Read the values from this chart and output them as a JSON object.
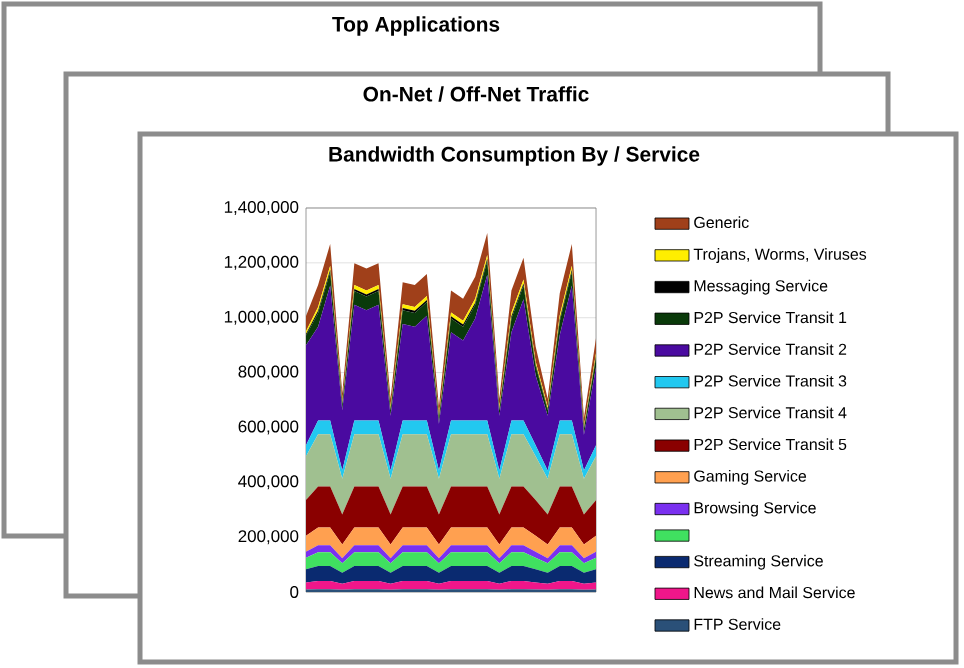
{
  "chart_data": {
    "type": "area",
    "stacked": true,
    "title": "Bandwidth Consumption By / Service",
    "annotations": [
      "Top Applications",
      "On-Net / Off-Net Traffic"
    ],
    "categories": [
      null,
      null,
      null,
      null,
      null,
      null,
      null,
      null,
      null,
      null,
      null,
      null,
      null,
      null,
      null,
      null,
      null,
      null,
      null,
      null,
      null,
      null,
      null,
      null,
      null
    ],
    "ylim": [
      0,
      1400000
    ],
    "yticks": [
      0,
      {
        "value": 200000,
        "label": "200,000"
      },
      {
        "value": 400000,
        "label": "400,000"
      },
      {
        "value": 600000,
        "label": "600,000"
      },
      {
        "value": 800000,
        "label": "800,000"
      },
      {
        "value": 1000000,
        "label": "1,000,000"
      },
      {
        "value": 1200000,
        "label": "1,200,000"
      },
      {
        "value": 1400000,
        "label": "1,400,000"
      }
    ],
    "grid": "y",
    "legend": "right",
    "series": [
      {
        "name": "FTP Service",
        "color": "#2a5078",
        "values": [
          9000,
          10000,
          10000,
          8000,
          10000,
          10000,
          10000,
          8000,
          10000,
          10000,
          10000,
          8000,
          10000,
          10000,
          10000,
          10000,
          8000,
          10000,
          10000,
          9000,
          8000,
          10000,
          10000,
          8000,
          9000
        ]
      },
      {
        "name": "News and Mail Service",
        "color": "#f0168a",
        "values": [
          26000,
          30000,
          30000,
          22000,
          30000,
          30000,
          30000,
          22000,
          30000,
          30000,
          30000,
          22000,
          30000,
          30000,
          30000,
          30000,
          22000,
          30000,
          30000,
          26000,
          22000,
          30000,
          30000,
          22000,
          26000
        ]
      },
      {
        "name": "Streaming Service",
        "color": "#0a2a70",
        "values": [
          48000,
          55000,
          55000,
          40000,
          55000,
          55000,
          55000,
          40000,
          55000,
          55000,
          55000,
          40000,
          55000,
          55000,
          55000,
          55000,
          40000,
          55000,
          55000,
          48000,
          40000,
          55000,
          55000,
          40000,
          48000
        ]
      },
      {
        "color": "#40e060",
        "values": [
          42000,
          50000,
          50000,
          35000,
          50000,
          50000,
          50000,
          35000,
          50000,
          50000,
          50000,
          35000,
          50000,
          50000,
          50000,
          50000,
          35000,
          50000,
          50000,
          42000,
          35000,
          50000,
          50000,
          35000,
          42000
        ]
      },
      {
        "name": "Browsing Service",
        "color": "#7a30f0",
        "values": [
          22000,
          25000,
          25000,
          18000,
          25000,
          25000,
          25000,
          18000,
          25000,
          25000,
          25000,
          18000,
          25000,
          25000,
          25000,
          25000,
          18000,
          25000,
          25000,
          22000,
          18000,
          25000,
          25000,
          18000,
          22000
        ]
      },
      {
        "name": "Gaming Service",
        "color": "#ffa050",
        "values": [
          58000,
          65000,
          65000,
          50000,
          65000,
          65000,
          65000,
          50000,
          65000,
          65000,
          65000,
          50000,
          65000,
          65000,
          65000,
          65000,
          50000,
          65000,
          65000,
          58000,
          50000,
          65000,
          65000,
          50000,
          58000
        ]
      },
      {
        "name": "P2P Service Transit 5",
        "color": "#8a0000",
        "values": [
          130000,
          150000,
          150000,
          110000,
          150000,
          150000,
          150000,
          110000,
          150000,
          150000,
          150000,
          110000,
          150000,
          150000,
          150000,
          150000,
          110000,
          150000,
          150000,
          130000,
          110000,
          150000,
          150000,
          110000,
          130000
        ]
      },
      {
        "name": "P2P Service Transit 4",
        "color": "#a0c090",
        "values": [
          160000,
          190000,
          190000,
          130000,
          190000,
          190000,
          190000,
          130000,
          190000,
          190000,
          190000,
          130000,
          190000,
          190000,
          190000,
          190000,
          130000,
          190000,
          190000,
          160000,
          130000,
          190000,
          190000,
          130000,
          160000
        ]
      },
      {
        "name": "P2P Service Transit 3",
        "color": "#22c8f0",
        "values": [
          40000,
          50000,
          50000,
          30000,
          50000,
          50000,
          50000,
          30000,
          50000,
          50000,
          50000,
          30000,
          50000,
          50000,
          50000,
          50000,
          30000,
          50000,
          50000,
          40000,
          30000,
          50000,
          50000,
          30000,
          40000
        ]
      },
      {
        "name": "P2P Service Transit 2",
        "color": "#4a0aa0",
        "values": [
          365000,
          342000,
          492000,
          220000,
          422000,
          402000,
          422000,
          200000,
          352000,
          342000,
          382000,
          170000,
          322000,
          292000,
          372000,
          532000,
          200000,
          322000,
          442000,
          255000,
          200000,
          312000,
          492000,
          130000,
          285000
        ]
      },
      {
        "name": "P2P Service Transit 1",
        "color": "#0a3a0a",
        "values": [
          35000,
          50000,
          50000,
          20000,
          50000,
          50000,
          50000,
          20000,
          50000,
          50000,
          50000,
          20000,
          50000,
          50000,
          50000,
          50000,
          20000,
          50000,
          50000,
          35000,
          20000,
          50000,
          50000,
          20000,
          35000
        ]
      },
      {
        "name": "Messaging Service",
        "color": "#000000",
        "values": [
          6000,
          8000,
          8000,
          4000,
          8000,
          8000,
          8000,
          4000,
          8000,
          8000,
          8000,
          4000,
          8000,
          8000,
          8000,
          8000,
          4000,
          8000,
          8000,
          6000,
          4000,
          8000,
          8000,
          4000,
          6000
        ]
      },
      {
        "name": "Trojans, Worms, Viruses",
        "color": "#ffee00",
        "values": [
          10000,
          14000,
          14000,
          8000,
          14000,
          14000,
          14000,
          8000,
          14000,
          14000,
          14000,
          8000,
          14000,
          14000,
          14000,
          14000,
          8000,
          14000,
          14000,
          10000,
          8000,
          14000,
          14000,
          8000,
          10000
        ]
      },
      {
        "name": "Generic",
        "color": "#a0401a",
        "values": [
          55000,
          80000,
          80000,
          30000,
          80000,
          80000,
          80000,
          30000,
          80000,
          80000,
          80000,
          30000,
          80000,
          80000,
          80000,
          80000,
          30000,
          80000,
          80000,
          55000,
          30000,
          80000,
          80000,
          30000,
          55000
        ]
      }
    ]
  }
}
